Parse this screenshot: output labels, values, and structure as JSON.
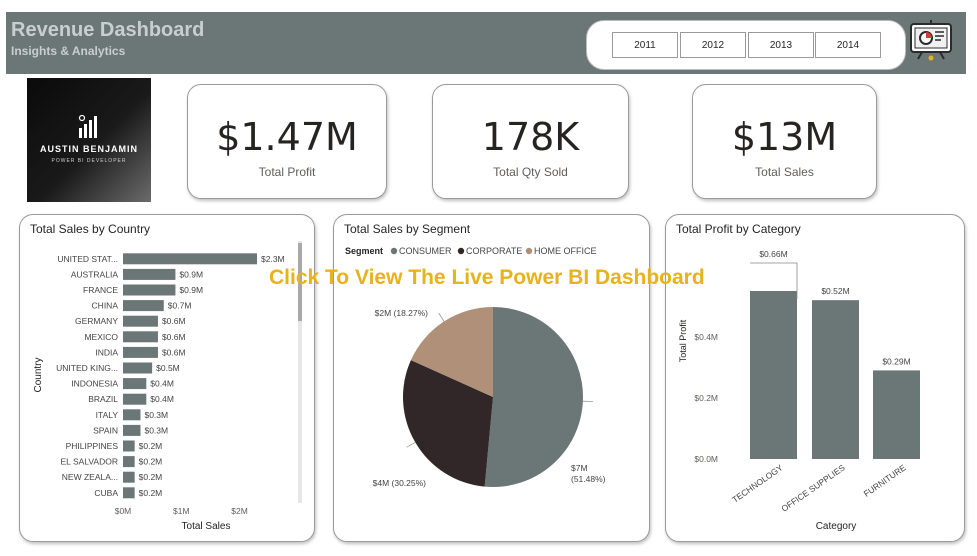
{
  "header": {
    "title": "Revenue Dashboard",
    "subtitle": "Insights & Analytics"
  },
  "year_slicer": {
    "years": [
      "2011",
      "2012",
      "2013",
      "2014"
    ]
  },
  "logo": {
    "name": "AUSTIN BENJAMIN",
    "role": "POWER BI DEVELOPER"
  },
  "kpis": [
    {
      "value": "$1.47M",
      "label": "Total Profit"
    },
    {
      "value": "178K",
      "label": "Total Qty Sold"
    },
    {
      "value": "$13M",
      "label": "Total Sales"
    }
  ],
  "overlay_text": "Click To View The Live Power BI Dashboard",
  "colors": {
    "header": "#6b7676",
    "bar": "#6b7676",
    "consumer": "#6b7676",
    "corporate": "#312728",
    "home_office": "#b09078",
    "overlay": "#e8b21a"
  },
  "chart_data": [
    {
      "type": "bar",
      "orientation": "horizontal",
      "title": "Total Sales by Country",
      "xlabel": "Total Sales",
      "ylabel": "Country",
      "categories": [
        "UNITED STAT...",
        "AUSTRALIA",
        "FRANCE",
        "CHINA",
        "GERMANY",
        "MEXICO",
        "INDIA",
        "UNITED KING...",
        "INDONESIA",
        "BRAZIL",
        "ITALY",
        "SPAIN",
        "PHILIPPINES",
        "EL SALVADOR",
        "NEW ZEALA...",
        "CUBA"
      ],
      "values": [
        2.3,
        0.9,
        0.9,
        0.7,
        0.6,
        0.6,
        0.6,
        0.5,
        0.4,
        0.4,
        0.3,
        0.3,
        0.2,
        0.2,
        0.2,
        0.2
      ],
      "data_labels": [
        "$2.3M",
        "$0.9M",
        "$0.9M",
        "$0.7M",
        "$0.6M",
        "$0.6M",
        "$0.6M",
        "$0.5M",
        "$0.4M",
        "$0.4M",
        "$0.3M",
        "$0.3M",
        "$0.2M",
        "$0.2M",
        "$0.2M",
        "$0.2M"
      ],
      "xticks": [
        "$0M",
        "$1M",
        "$2M"
      ],
      "xlim": [
        0,
        2.3
      ]
    },
    {
      "type": "pie",
      "title": "Total Sales by Segment",
      "legend_title": "Segment",
      "legend_position": "top-left",
      "series": [
        {
          "name": "CONSUMER",
          "value": 7,
          "pct": 51.48,
          "label": "$7M (51.48%)",
          "color": "#6b7676"
        },
        {
          "name": "CORPORATE",
          "value": 4,
          "pct": 30.25,
          "label": "$4M (30.25%)",
          "color": "#312728"
        },
        {
          "name": "HOME OFFICE",
          "value": 2,
          "pct": 18.27,
          "label": "$2M (18.27%)",
          "color": "#b09078"
        }
      ]
    },
    {
      "type": "bar",
      "orientation": "vertical",
      "title": "Total Profit by Category",
      "xlabel": "Category",
      "ylabel": "Total Profit",
      "categories": [
        "TECHNOLOGY",
        "OFFICE SUPPLIES",
        "FURNITURE"
      ],
      "values": [
        0.66,
        0.52,
        0.29
      ],
      "data_labels": [
        "$0.66M",
        "$0.52M",
        "$0.29M"
      ],
      "yticks": [
        "$0.0M",
        "$0.2M",
        "$0.4M"
      ],
      "ylim": [
        0,
        0.55
      ]
    }
  ]
}
